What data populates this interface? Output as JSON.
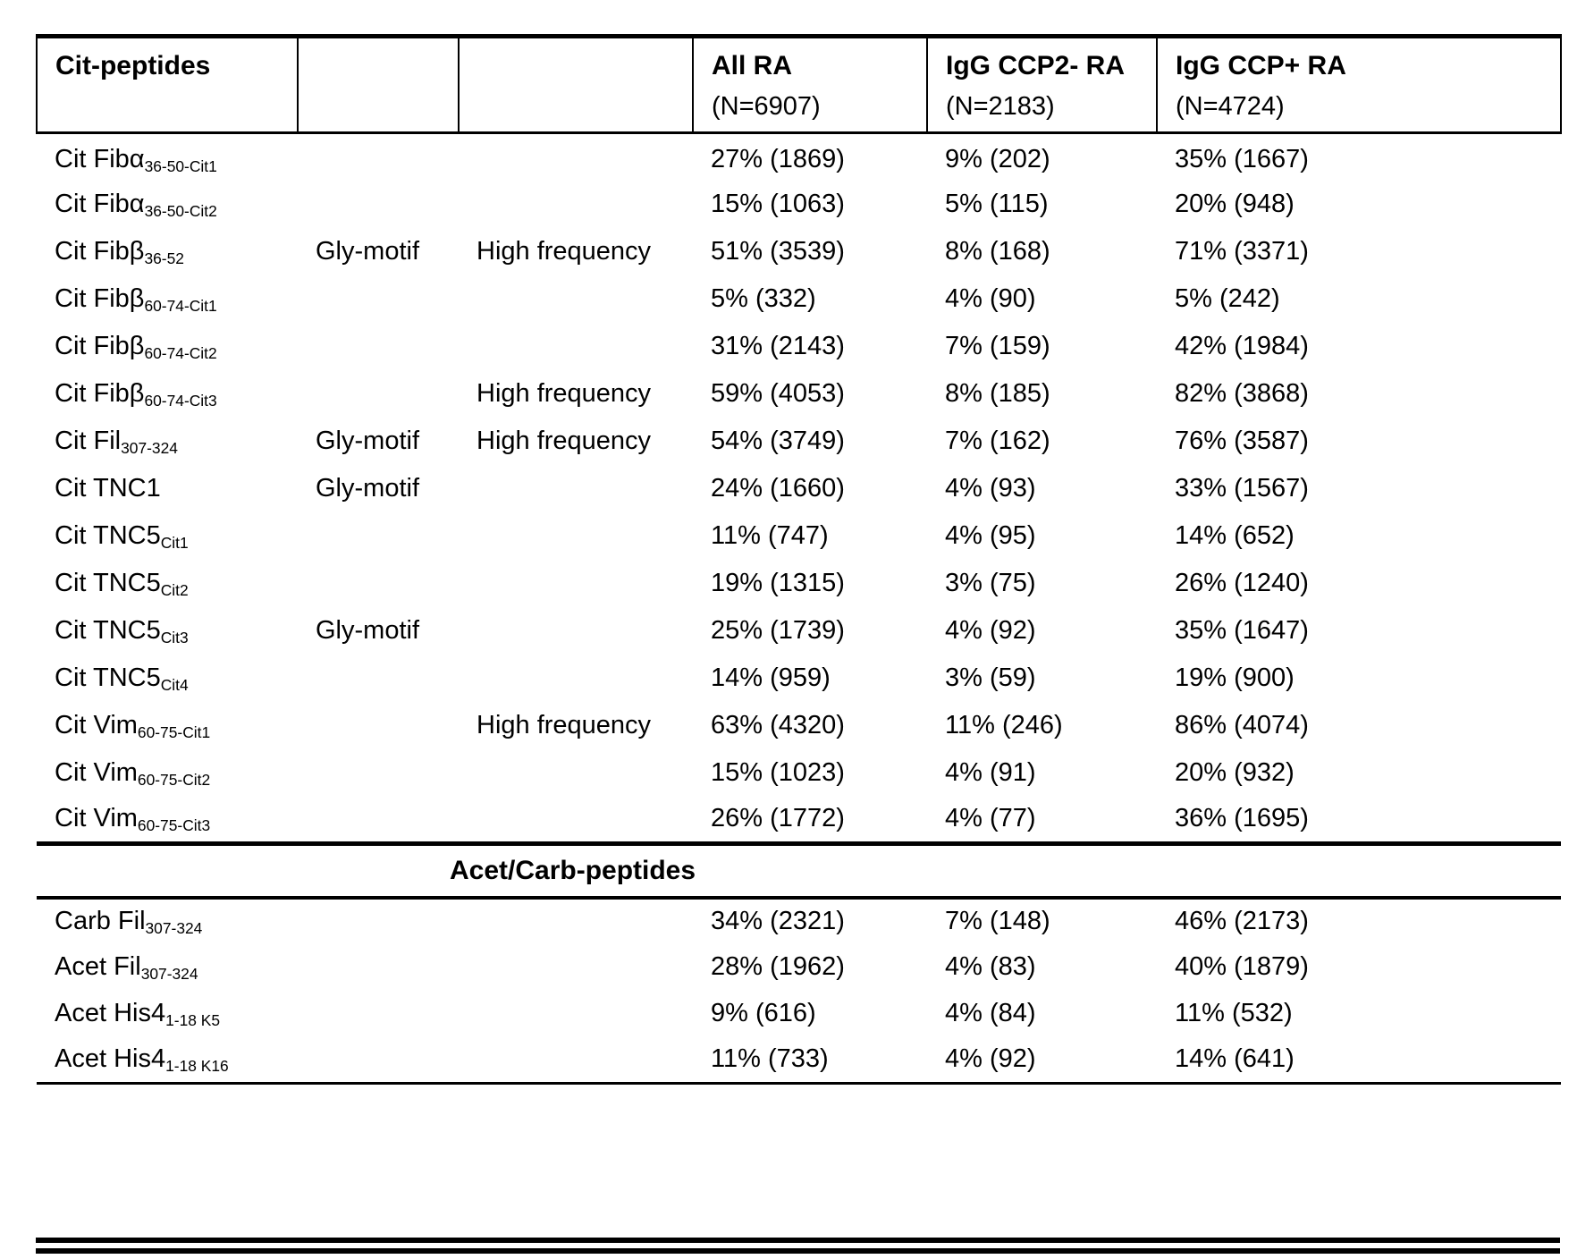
{
  "table": {
    "header": {
      "peptides_label": "Cit-peptides",
      "all_ra": {
        "title": "All RA",
        "n": "(N=6907)"
      },
      "ccp2_neg": {
        "title": "IgG CCP2- RA",
        "n": "(N=2183)"
      },
      "ccp_pos": {
        "title": "IgG CCP+ RA",
        "n": "(N=4724)"
      }
    },
    "section_header": "Acet/Carb-peptides",
    "cit_rows": [
      {
        "name": "Cit Fibα",
        "sub": "36-50-Cit1",
        "motif": "",
        "freq": "",
        "all_ra": "27% (1869)",
        "ccp2_neg": "9% (202)",
        "ccp_pos": "35% (1667)"
      },
      {
        "name": "Cit Fibα",
        "sub": "36-50-Cit2",
        "motif": "",
        "freq": "",
        "all_ra": "15% (1063)",
        "ccp2_neg": "5% (115)",
        "ccp_pos": "20% (948)"
      },
      {
        "name": "Cit Fibβ",
        "sub": "36-52",
        "motif": "Gly-motif",
        "freq": "High frequency",
        "all_ra": "51% (3539)",
        "ccp2_neg": "8% (168)",
        "ccp_pos": "71% (3371)"
      },
      {
        "name": "Cit Fibβ",
        "sub": "60-74-Cit1",
        "motif": "",
        "freq": "",
        "all_ra": "5% (332)",
        "ccp2_neg": "4% (90)",
        "ccp_pos": "5% (242)"
      },
      {
        "name": "Cit Fibβ",
        "sub": "60-74-Cit2",
        "motif": "",
        "freq": "",
        "all_ra": "31% (2143)",
        "ccp2_neg": "7% (159)",
        "ccp_pos": "42% (1984)"
      },
      {
        "name": "Cit Fibβ",
        "sub": "60-74-Cit3",
        "motif": "",
        "freq": "High frequency",
        "all_ra": "59% (4053)",
        "ccp2_neg": "8% (185)",
        "ccp_pos": "82% (3868)"
      },
      {
        "name": "Cit Fil",
        "sub": "307-324",
        "motif": "Gly-motif",
        "freq": "High frequency",
        "all_ra": "54% (3749)",
        "ccp2_neg": "7% (162)",
        "ccp_pos": "76% (3587)"
      },
      {
        "name": "Cit TNC1",
        "sub": "",
        "motif": "Gly-motif",
        "freq": "",
        "all_ra": "24% (1660)",
        "ccp2_neg": "4% (93)",
        "ccp_pos": "33% (1567)"
      },
      {
        "name": "Cit TNC5",
        "sub": "Cit1",
        "motif": "",
        "freq": "",
        "all_ra": "11% (747)",
        "ccp2_neg": "4% (95)",
        "ccp_pos": "14% (652)"
      },
      {
        "name": "Cit TNC5",
        "sub": "Cit2",
        "motif": "",
        "freq": "",
        "all_ra": "19% (1315)",
        "ccp2_neg": "3% (75)",
        "ccp_pos": "26% (1240)"
      },
      {
        "name": "Cit TNC5",
        "sub": "Cit3",
        "motif": "Gly-motif",
        "freq": "",
        "all_ra": "25% (1739)",
        "ccp2_neg": "4% (92)",
        "ccp_pos": "35% (1647)"
      },
      {
        "name": "Cit TNC5",
        "sub": "Cit4",
        "motif": "",
        "freq": "",
        "all_ra": "14% (959)",
        "ccp2_neg": "3% (59)",
        "ccp_pos": "19% (900)"
      },
      {
        "name": "Cit Vim",
        "sub": "60-75-Cit1",
        "motif": "",
        "freq": "High frequency",
        "all_ra": "63% (4320)",
        "ccp2_neg": "11% (246)",
        "ccp_pos": "86% (4074)"
      },
      {
        "name": "Cit Vim",
        "sub": "60-75-Cit2",
        "motif": "",
        "freq": "",
        "all_ra": "15% (1023)",
        "ccp2_neg": "4% (91)",
        "ccp_pos": "20% (932)"
      },
      {
        "name": "Cit Vim",
        "sub": "60-75-Cit3",
        "motif": "",
        "freq": "",
        "all_ra": "26% (1772)",
        "ccp2_neg": "4% (77)",
        "ccp_pos": "36% (1695)"
      }
    ],
    "acet_rows": [
      {
        "name": "Carb Fil",
        "sub": "307-324",
        "motif": "",
        "freq": "",
        "all_ra": "34% (2321)",
        "ccp2_neg": "7% (148)",
        "ccp_pos": "46% (2173)"
      },
      {
        "name": "Acet Fil",
        "sub": "307-324",
        "motif": "",
        "freq": "",
        "all_ra": "28% (1962)",
        "ccp2_neg": "4% (83)",
        "ccp_pos": "40% (1879)"
      },
      {
        "name": "Acet His4",
        "sub": "1-18 K5",
        "motif": "",
        "freq": "",
        "all_ra": "9% (616)",
        "ccp2_neg": "4% (84)",
        "ccp_pos": "11% (532)"
      },
      {
        "name": "Acet His4",
        "sub": "1-18 K16",
        "motif": "",
        "freq": "",
        "all_ra": "11% (733)",
        "ccp2_neg": "4% (92)",
        "ccp_pos": "14% (641)"
      }
    ]
  }
}
